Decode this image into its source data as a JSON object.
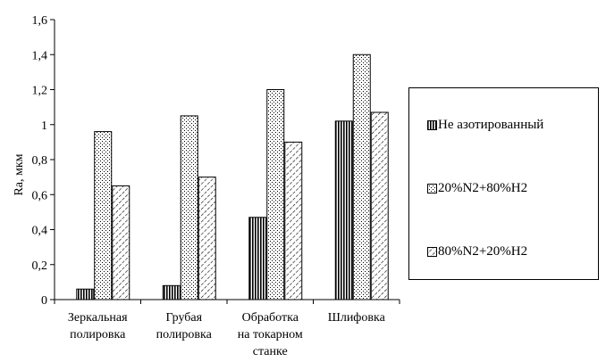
{
  "chart_data": {
    "type": "bar",
    "categories": [
      [
        "Зеркальная",
        "полировка"
      ],
      [
        "Грубая",
        "полировка"
      ],
      [
        "Обработка",
        "на токарном",
        "станке"
      ],
      [
        "Шлифовка"
      ]
    ],
    "series": [
      {
        "name": "Не азотированный",
        "values": [
          0.06,
          0.08,
          0.47,
          1.02
        ],
        "pattern": "vertical-lines"
      },
      {
        "name": "20%N2+80%H2",
        "values": [
          0.96,
          1.05,
          1.2,
          1.4
        ],
        "pattern": "dots"
      },
      {
        "name": "80%N2+20%H2",
        "values": [
          0.65,
          0.7,
          0.9,
          1.07
        ],
        "pattern": "diagonal-hatch"
      }
    ],
    "ylabel": "Ra, мкм",
    "xlabel": "",
    "title": "",
    "ylim": [
      0,
      1.6
    ],
    "yticks": [
      "0",
      "0,2",
      "0,4",
      "0,6",
      "0,8",
      "1",
      "1,2",
      "1,4",
      "1,6"
    ],
    "grid": false,
    "legend_position": "right"
  }
}
